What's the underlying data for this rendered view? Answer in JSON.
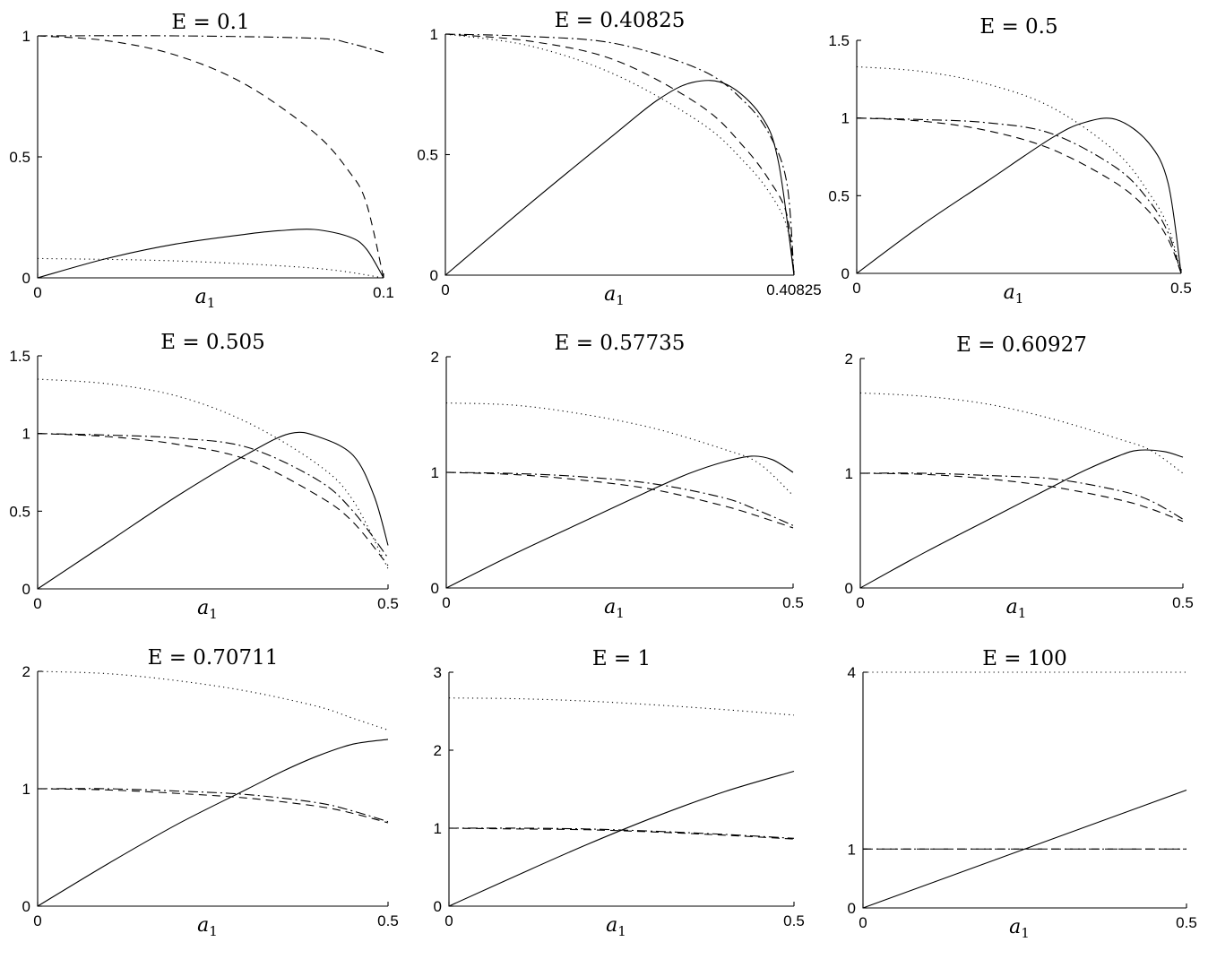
{
  "chart_data": [
    {
      "type": "line",
      "title": "E = 0.1",
      "xlabel": "a1",
      "xlim": [
        0,
        0.1
      ],
      "ylim": [
        0,
        1
      ],
      "xticks": [
        "0",
        "0.1"
      ],
      "yticks": [
        "0",
        "0.5",
        "1"
      ],
      "series": [
        {
          "style": "solid",
          "x": [
            0,
            0.02,
            0.04,
            0.06,
            0.07,
            0.08,
            0.09,
            0.095,
            0.1
          ],
          "y": [
            0,
            0.08,
            0.14,
            0.18,
            0.195,
            0.2,
            0.17,
            0.12,
            0
          ]
        },
        {
          "style": "dashed",
          "x": [
            0,
            0.02,
            0.04,
            0.06,
            0.08,
            0.09,
            0.095,
            0.1
          ],
          "y": [
            1,
            0.98,
            0.92,
            0.8,
            0.6,
            0.44,
            0.31,
            0
          ]
        },
        {
          "style": "dotted",
          "x": [
            0,
            0.04,
            0.08,
            0.1
          ],
          "y": [
            0.08,
            0.07,
            0.04,
            0
          ]
        },
        {
          "style": "dashdot",
          "x": [
            0,
            0.04,
            0.08,
            0.09,
            0.1
          ],
          "y": [
            1,
            1,
            0.99,
            0.97,
            0.93
          ]
        }
      ]
    },
    {
      "type": "line",
      "title": "E = 0.40825",
      "xlabel": "a1",
      "xlim": [
        0,
        0.40825
      ],
      "ylim": [
        0,
        1
      ],
      "xticks": [
        "0",
        "0.40825"
      ],
      "yticks": [
        "0",
        "0.5",
        "1"
      ],
      "series": [
        {
          "style": "solid",
          "x": [
            0,
            0.1,
            0.2,
            0.25,
            0.29,
            0.33,
            0.37,
            0.39,
            0.40825
          ],
          "y": [
            0,
            0.3,
            0.59,
            0.73,
            0.8,
            0.79,
            0.66,
            0.47,
            0
          ]
        },
        {
          "style": "dashed",
          "x": [
            0,
            0.1,
            0.2,
            0.3,
            0.35,
            0.38,
            0.4,
            0.40825
          ],
          "y": [
            1,
            0.97,
            0.89,
            0.7,
            0.53,
            0.39,
            0.25,
            0
          ]
        },
        {
          "style": "dotted",
          "x": [
            0,
            0.1,
            0.2,
            0.3,
            0.35,
            0.38,
            0.4,
            0.40825
          ],
          "y": [
            1,
            0.95,
            0.83,
            0.63,
            0.47,
            0.34,
            0.2,
            0
          ]
        },
        {
          "style": "dashdot",
          "x": [
            0,
            0.1,
            0.2,
            0.3,
            0.35,
            0.38,
            0.4,
            0.40825
          ],
          "y": [
            1,
            0.99,
            0.96,
            0.85,
            0.72,
            0.58,
            0.38,
            0
          ]
        }
      ]
    },
    {
      "type": "line",
      "title": "E = 0.5",
      "xlabel": "a1",
      "xlim": [
        0,
        0.5
      ],
      "ylim": [
        0,
        1.5
      ],
      "xticks": [
        "0",
        "0.5"
      ],
      "yticks": [
        "0",
        "0.5",
        "1",
        "1.5"
      ],
      "series": [
        {
          "style": "solid",
          "x": [
            0,
            0.1,
            0.2,
            0.3,
            0.35,
            0.4,
            0.45,
            0.48,
            0.5
          ],
          "y": [
            0,
            0.31,
            0.59,
            0.87,
            0.97,
            0.99,
            0.84,
            0.58,
            0
          ]
        },
        {
          "style": "dashed",
          "x": [
            0,
            0.1,
            0.2,
            0.3,
            0.4,
            0.45,
            0.48,
            0.5
          ],
          "y": [
            1,
            0.98,
            0.92,
            0.8,
            0.58,
            0.4,
            0.22,
            0
          ]
        },
        {
          "style": "dotted",
          "x": [
            0,
            0.1,
            0.2,
            0.3,
            0.4,
            0.45,
            0.48,
            0.5
          ],
          "y": [
            1.33,
            1.3,
            1.22,
            1.07,
            0.78,
            0.52,
            0.3,
            0
          ]
        },
        {
          "style": "dashdot",
          "x": [
            0,
            0.1,
            0.2,
            0.3,
            0.4,
            0.45,
            0.48,
            0.5
          ],
          "y": [
            1,
            0.99,
            0.97,
            0.9,
            0.68,
            0.47,
            0.26,
            0
          ]
        }
      ]
    },
    {
      "type": "line",
      "title": "E = 0.505",
      "xlabel": "a1",
      "xlim": [
        0,
        0.5
      ],
      "ylim": [
        0,
        1.5
      ],
      "xticks": [
        "0",
        "0.5"
      ],
      "yticks": [
        "0",
        "0.5",
        "1",
        "1.5"
      ],
      "series": [
        {
          "style": "solid",
          "x": [
            0,
            0.1,
            0.2,
            0.3,
            0.36,
            0.4,
            0.45,
            0.48,
            0.5
          ],
          "y": [
            0,
            0.3,
            0.6,
            0.87,
            1.0,
            0.98,
            0.86,
            0.6,
            0.28
          ]
        },
        {
          "style": "dashed",
          "x": [
            0,
            0.1,
            0.2,
            0.3,
            0.4,
            0.45,
            0.5
          ],
          "y": [
            1,
            0.98,
            0.93,
            0.83,
            0.6,
            0.43,
            0.15
          ]
        },
        {
          "style": "dotted",
          "x": [
            0,
            0.1,
            0.2,
            0.3,
            0.4,
            0.45,
            0.5
          ],
          "y": [
            1.35,
            1.32,
            1.24,
            1.07,
            0.8,
            0.57,
            0.13
          ]
        },
        {
          "style": "dashdot",
          "x": [
            0,
            0.1,
            0.2,
            0.3,
            0.4,
            0.45,
            0.5
          ],
          "y": [
            1,
            0.99,
            0.97,
            0.91,
            0.7,
            0.5,
            0.2
          ]
        }
      ]
    },
    {
      "type": "line",
      "title": "E = 0.57735",
      "xlabel": "a1",
      "xlim": [
        0,
        0.5
      ],
      "ylim": [
        0,
        2
      ],
      "xticks": [
        "0",
        "0.5"
      ],
      "yticks": [
        "0",
        "1",
        "2"
      ],
      "series": [
        {
          "style": "solid",
          "x": [
            0,
            0.1,
            0.2,
            0.3,
            0.35,
            0.4,
            0.44,
            0.47,
            0.5
          ],
          "y": [
            0,
            0.3,
            0.58,
            0.86,
            0.99,
            1.09,
            1.14,
            1.11,
            1.0
          ]
        },
        {
          "style": "dashed",
          "x": [
            0,
            0.1,
            0.2,
            0.3,
            0.4,
            0.45,
            0.5
          ],
          "y": [
            1,
            0.98,
            0.93,
            0.85,
            0.71,
            0.62,
            0.52
          ]
        },
        {
          "style": "dotted",
          "x": [
            0,
            0.1,
            0.2,
            0.3,
            0.4,
            0.45,
            0.5
          ],
          "y": [
            1.6,
            1.58,
            1.5,
            1.38,
            1.2,
            1.08,
            0.8
          ]
        },
        {
          "style": "dashdot",
          "x": [
            0,
            0.1,
            0.2,
            0.3,
            0.4,
            0.45,
            0.5
          ],
          "y": [
            1,
            0.99,
            0.96,
            0.9,
            0.78,
            0.67,
            0.54
          ]
        }
      ]
    },
    {
      "type": "line",
      "title": "E = 0.60927",
      "xlabel": "a1",
      "xlim": [
        0,
        0.5
      ],
      "ylim": [
        0,
        2
      ],
      "xticks": [
        "0",
        "0.5"
      ],
      "yticks": [
        "0",
        "1",
        "2"
      ],
      "series": [
        {
          "style": "solid",
          "x": [
            0,
            0.1,
            0.2,
            0.3,
            0.35,
            0.4,
            0.43,
            0.47,
            0.5
          ],
          "y": [
            0,
            0.31,
            0.6,
            0.89,
            1.03,
            1.15,
            1.2,
            1.19,
            1.14
          ]
        },
        {
          "style": "dashed",
          "x": [
            0,
            0.1,
            0.2,
            0.3,
            0.4,
            0.45,
            0.5
          ],
          "y": [
            1,
            0.99,
            0.95,
            0.88,
            0.77,
            0.69,
            0.58
          ]
        },
        {
          "style": "dotted",
          "x": [
            0,
            0.1,
            0.2,
            0.3,
            0.4,
            0.45,
            0.5
          ],
          "y": [
            1.7,
            1.67,
            1.6,
            1.47,
            1.3,
            1.2,
            1.0
          ]
        },
        {
          "style": "dashdot",
          "x": [
            0,
            0.1,
            0.2,
            0.3,
            0.4,
            0.45,
            0.5
          ],
          "y": [
            1,
            1.0,
            0.98,
            0.95,
            0.85,
            0.76,
            0.6
          ]
        }
      ]
    },
    {
      "type": "line",
      "title": "E = 0.70711",
      "xlabel": "a1",
      "xlim": [
        0,
        0.5
      ],
      "ylim": [
        0,
        2
      ],
      "xticks": [
        "0",
        "0.5"
      ],
      "yticks": [
        "0",
        "1",
        "2"
      ],
      "series": [
        {
          "style": "solid",
          "x": [
            0,
            0.1,
            0.2,
            0.3,
            0.35,
            0.4,
            0.45,
            0.5
          ],
          "y": [
            0,
            0.36,
            0.7,
            1.0,
            1.15,
            1.28,
            1.38,
            1.42
          ]
        },
        {
          "style": "dashed",
          "x": [
            0,
            0.1,
            0.2,
            0.3,
            0.4,
            0.45,
            0.5
          ],
          "y": [
            1,
            0.99,
            0.96,
            0.92,
            0.85,
            0.79,
            0.71
          ]
        },
        {
          "style": "dotted",
          "x": [
            0,
            0.1,
            0.2,
            0.3,
            0.4,
            0.45,
            0.5
          ],
          "y": [
            2.0,
            1.98,
            1.92,
            1.83,
            1.7,
            1.6,
            1.5
          ]
        },
        {
          "style": "dashdot",
          "x": [
            0,
            0.1,
            0.2,
            0.3,
            0.4,
            0.45,
            0.5
          ],
          "y": [
            1,
            1.0,
            0.98,
            0.95,
            0.88,
            0.81,
            0.72
          ]
        }
      ]
    },
    {
      "type": "line",
      "title": "E = 1",
      "xlabel": "a1",
      "xlim": [
        0,
        0.5
      ],
      "ylim": [
        0,
        3
      ],
      "xticks": [
        "0",
        "0.5"
      ],
      "yticks": [
        "0",
        "1",
        "2",
        "3"
      ],
      "series": [
        {
          "style": "solid",
          "x": [
            0,
            0.1,
            0.2,
            0.3,
            0.4,
            0.5
          ],
          "y": [
            0,
            0.4,
            0.79,
            1.15,
            1.47,
            1.73
          ]
        },
        {
          "style": "dashed",
          "x": [
            0,
            0.1,
            0.2,
            0.3,
            0.4,
            0.5
          ],
          "y": [
            1,
            0.99,
            0.98,
            0.95,
            0.91,
            0.86
          ]
        },
        {
          "style": "dotted",
          "x": [
            0,
            0.1,
            0.2,
            0.3,
            0.4,
            0.5
          ],
          "y": [
            2.67,
            2.66,
            2.63,
            2.58,
            2.52,
            2.45
          ]
        },
        {
          "style": "dashdot",
          "x": [
            0,
            0.1,
            0.2,
            0.3,
            0.4,
            0.5
          ],
          "y": [
            1,
            1.0,
            0.99,
            0.96,
            0.92,
            0.87
          ]
        }
      ]
    },
    {
      "type": "line",
      "title": "E = 100",
      "xlabel": "a1",
      "xlim": [
        0,
        0.5
      ],
      "ylim": [
        0,
        4
      ],
      "xticks": [
        "0",
        "0.5"
      ],
      "yticks": [
        "0",
        "1",
        "4"
      ],
      "series": [
        {
          "style": "solid",
          "x": [
            0,
            0.5
          ],
          "y": [
            0,
            2.0
          ]
        },
        {
          "style": "dashed",
          "x": [
            0,
            0.5
          ],
          "y": [
            1,
            1
          ]
        },
        {
          "style": "dotted",
          "x": [
            0,
            0.5
          ],
          "y": [
            4,
            4
          ]
        },
        {
          "style": "dashdot",
          "x": [
            0,
            0.5
          ],
          "y": [
            1,
            1
          ]
        }
      ]
    }
  ]
}
